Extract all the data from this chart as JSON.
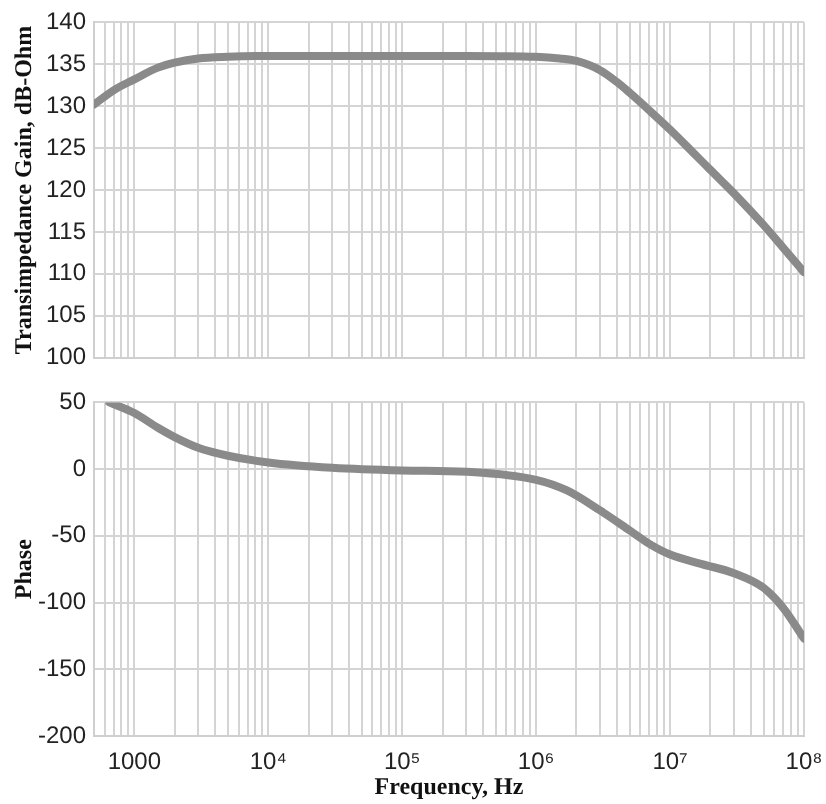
{
  "chart_data": [
    {
      "type": "line",
      "ylabel": "Transimpedance Gain, dB-Ohm",
      "log": "x",
      "grid": true,
      "tick_labels": "y",
      "x": [
        500,
        700,
        1000,
        1500,
        2000,
        3000,
        5000,
        10000,
        30000,
        100000,
        300000,
        1000000,
        1500000,
        2000000,
        3000000,
        4000000,
        5000000,
        7000000,
        10000000,
        15000000,
        20000000,
        30000000,
        50000000,
        70000000,
        100000000
      ],
      "series": [
        {
          "color": "#8a8a8a",
          "values": [
            130.2,
            131.9,
            133.2,
            134.6,
            135.2,
            135.7,
            135.9,
            136,
            136,
            136,
            136,
            135.9,
            135.7,
            135.4,
            134.3,
            132.9,
            131.6,
            129.5,
            127.2,
            124.4,
            122.4,
            119.6,
            115.8,
            113.1,
            110.2
          ]
        }
      ],
      "xlim": [
        500,
        100000000
      ],
      "xticks": [
        {
          "value": 500,
          "label": null
        },
        {
          "value": 600,
          "label": null
        },
        {
          "value": 700,
          "label": null
        },
        {
          "value": 800,
          "label": null
        },
        {
          "value": 900,
          "label": null
        },
        {
          "value": 1000,
          "label": null
        },
        {
          "value": 2000,
          "label": null
        },
        {
          "value": 3000,
          "label": null
        },
        {
          "value": 4000,
          "label": null
        },
        {
          "value": 5000,
          "label": null
        },
        {
          "value": 6000,
          "label": null
        },
        {
          "value": 7000,
          "label": null
        },
        {
          "value": 8000,
          "label": null
        },
        {
          "value": 9000,
          "label": null
        },
        {
          "value": 10000,
          "label": null
        },
        {
          "value": 20000,
          "label": null
        },
        {
          "value": 30000,
          "label": null
        },
        {
          "value": 40000,
          "label": null
        },
        {
          "value": 50000,
          "label": null
        },
        {
          "value": 60000,
          "label": null
        },
        {
          "value": 70000,
          "label": null
        },
        {
          "value": 80000,
          "label": null
        },
        {
          "value": 90000,
          "label": null
        },
        {
          "value": 100000,
          "label": null
        },
        {
          "value": 200000,
          "label": null
        },
        {
          "value": 300000,
          "label": null
        },
        {
          "value": 400000,
          "label": null
        },
        {
          "value": 500000,
          "label": null
        },
        {
          "value": 600000,
          "label": null
        },
        {
          "value": 700000,
          "label": null
        },
        {
          "value": 800000,
          "label": null
        },
        {
          "value": 900000,
          "label": null
        },
        {
          "value": 1000000,
          "label": null
        },
        {
          "value": 2000000,
          "label": null
        },
        {
          "value": 3000000,
          "label": null
        },
        {
          "value": 4000000,
          "label": null
        },
        {
          "value": 5000000,
          "label": null
        },
        {
          "value": 6000000,
          "label": null
        },
        {
          "value": 7000000,
          "label": null
        },
        {
          "value": 8000000,
          "label": null
        },
        {
          "value": 9000000,
          "label": null
        },
        {
          "value": 10000000,
          "label": null
        },
        {
          "value": 20000000,
          "label": null
        },
        {
          "value": 30000000,
          "label": null
        },
        {
          "value": 40000000,
          "label": null
        },
        {
          "value": 50000000,
          "label": null
        },
        {
          "value": 60000000,
          "label": null
        },
        {
          "value": 70000000,
          "label": null
        },
        {
          "value": 80000000,
          "label": null
        },
        {
          "value": 90000000,
          "label": null
        },
        {
          "value": 100000000,
          "label": null
        }
      ],
      "ylim": [
        100,
        140
      ],
      "yticks": [
        100,
        105,
        110,
        115,
        120,
        125,
        130,
        135,
        140
      ]
    },
    {
      "type": "line",
      "xlabel": "Frequency, Hz",
      "ylabel": "Phase",
      "log": "x",
      "grid": true,
      "x": [
        650,
        1000,
        1500,
        2000,
        3000,
        5000,
        10000,
        30000,
        100000,
        300000,
        1000000,
        1700000,
        3000000,
        5000000,
        7000000,
        10000000,
        17000000,
        30000000,
        50000000,
        70000000,
        100000000
      ],
      "series": [
        {
          "color": "#8a8a8a",
          "values": [
            50,
            42,
            31,
            24,
            16,
            10,
            5,
            1,
            -1,
            -2,
            -8,
            -16,
            -31,
            -46,
            -56,
            -64,
            -71,
            -78,
            -89,
            -104,
            -127
          ]
        }
      ],
      "xlim": [
        500,
        100000000
      ],
      "xticks": [
        {
          "value": 500,
          "label": null
        },
        {
          "value": 600,
          "label": null
        },
        {
          "value": 700,
          "label": null
        },
        {
          "value": 800,
          "label": null
        },
        {
          "value": 900,
          "label": null
        },
        1000,
        {
          "value": 2000,
          "label": null
        },
        {
          "value": 3000,
          "label": null
        },
        {
          "value": 4000,
          "label": null
        },
        {
          "value": 5000,
          "label": null
        },
        {
          "value": 6000,
          "label": null
        },
        {
          "value": 7000,
          "label": null
        },
        {
          "value": 8000,
          "label": null
        },
        {
          "value": 9000,
          "label": null
        },
        {
          "value": 10000,
          "label": "10⁴"
        },
        {
          "value": 20000,
          "label": null
        },
        {
          "value": 30000,
          "label": null
        },
        {
          "value": 40000,
          "label": null
        },
        {
          "value": 50000,
          "label": null
        },
        {
          "value": 60000,
          "label": null
        },
        {
          "value": 70000,
          "label": null
        },
        {
          "value": 80000,
          "label": null
        },
        {
          "value": 90000,
          "label": null
        },
        {
          "value": 100000,
          "label": "10⁵"
        },
        {
          "value": 200000,
          "label": null
        },
        {
          "value": 300000,
          "label": null
        },
        {
          "value": 400000,
          "label": null
        },
        {
          "value": 500000,
          "label": null
        },
        {
          "value": 600000,
          "label": null
        },
        {
          "value": 700000,
          "label": null
        },
        {
          "value": 800000,
          "label": null
        },
        {
          "value": 900000,
          "label": null
        },
        {
          "value": 1000000,
          "label": "10⁶"
        },
        {
          "value": 2000000,
          "label": null
        },
        {
          "value": 3000000,
          "label": null
        },
        {
          "value": 4000000,
          "label": null
        },
        {
          "value": 5000000,
          "label": null
        },
        {
          "value": 6000000,
          "label": null
        },
        {
          "value": 7000000,
          "label": null
        },
        {
          "value": 8000000,
          "label": null
        },
        {
          "value": 9000000,
          "label": null
        },
        {
          "value": 10000000,
          "label": "10⁷"
        },
        {
          "value": 20000000,
          "label": null
        },
        {
          "value": 30000000,
          "label": null
        },
        {
          "value": 40000000,
          "label": null
        },
        {
          "value": 50000000,
          "label": null
        },
        {
          "value": 60000000,
          "label": null
        },
        {
          "value": 70000000,
          "label": null
        },
        {
          "value": 80000000,
          "label": null
        },
        {
          "value": 90000000,
          "label": null
        },
        {
          "value": 100000000,
          "label": "10⁸"
        }
      ],
      "ylim": [
        -200,
        50
      ],
      "yticks": [
        -200,
        -150,
        -100,
        -50,
        0,
        50
      ]
    }
  ]
}
